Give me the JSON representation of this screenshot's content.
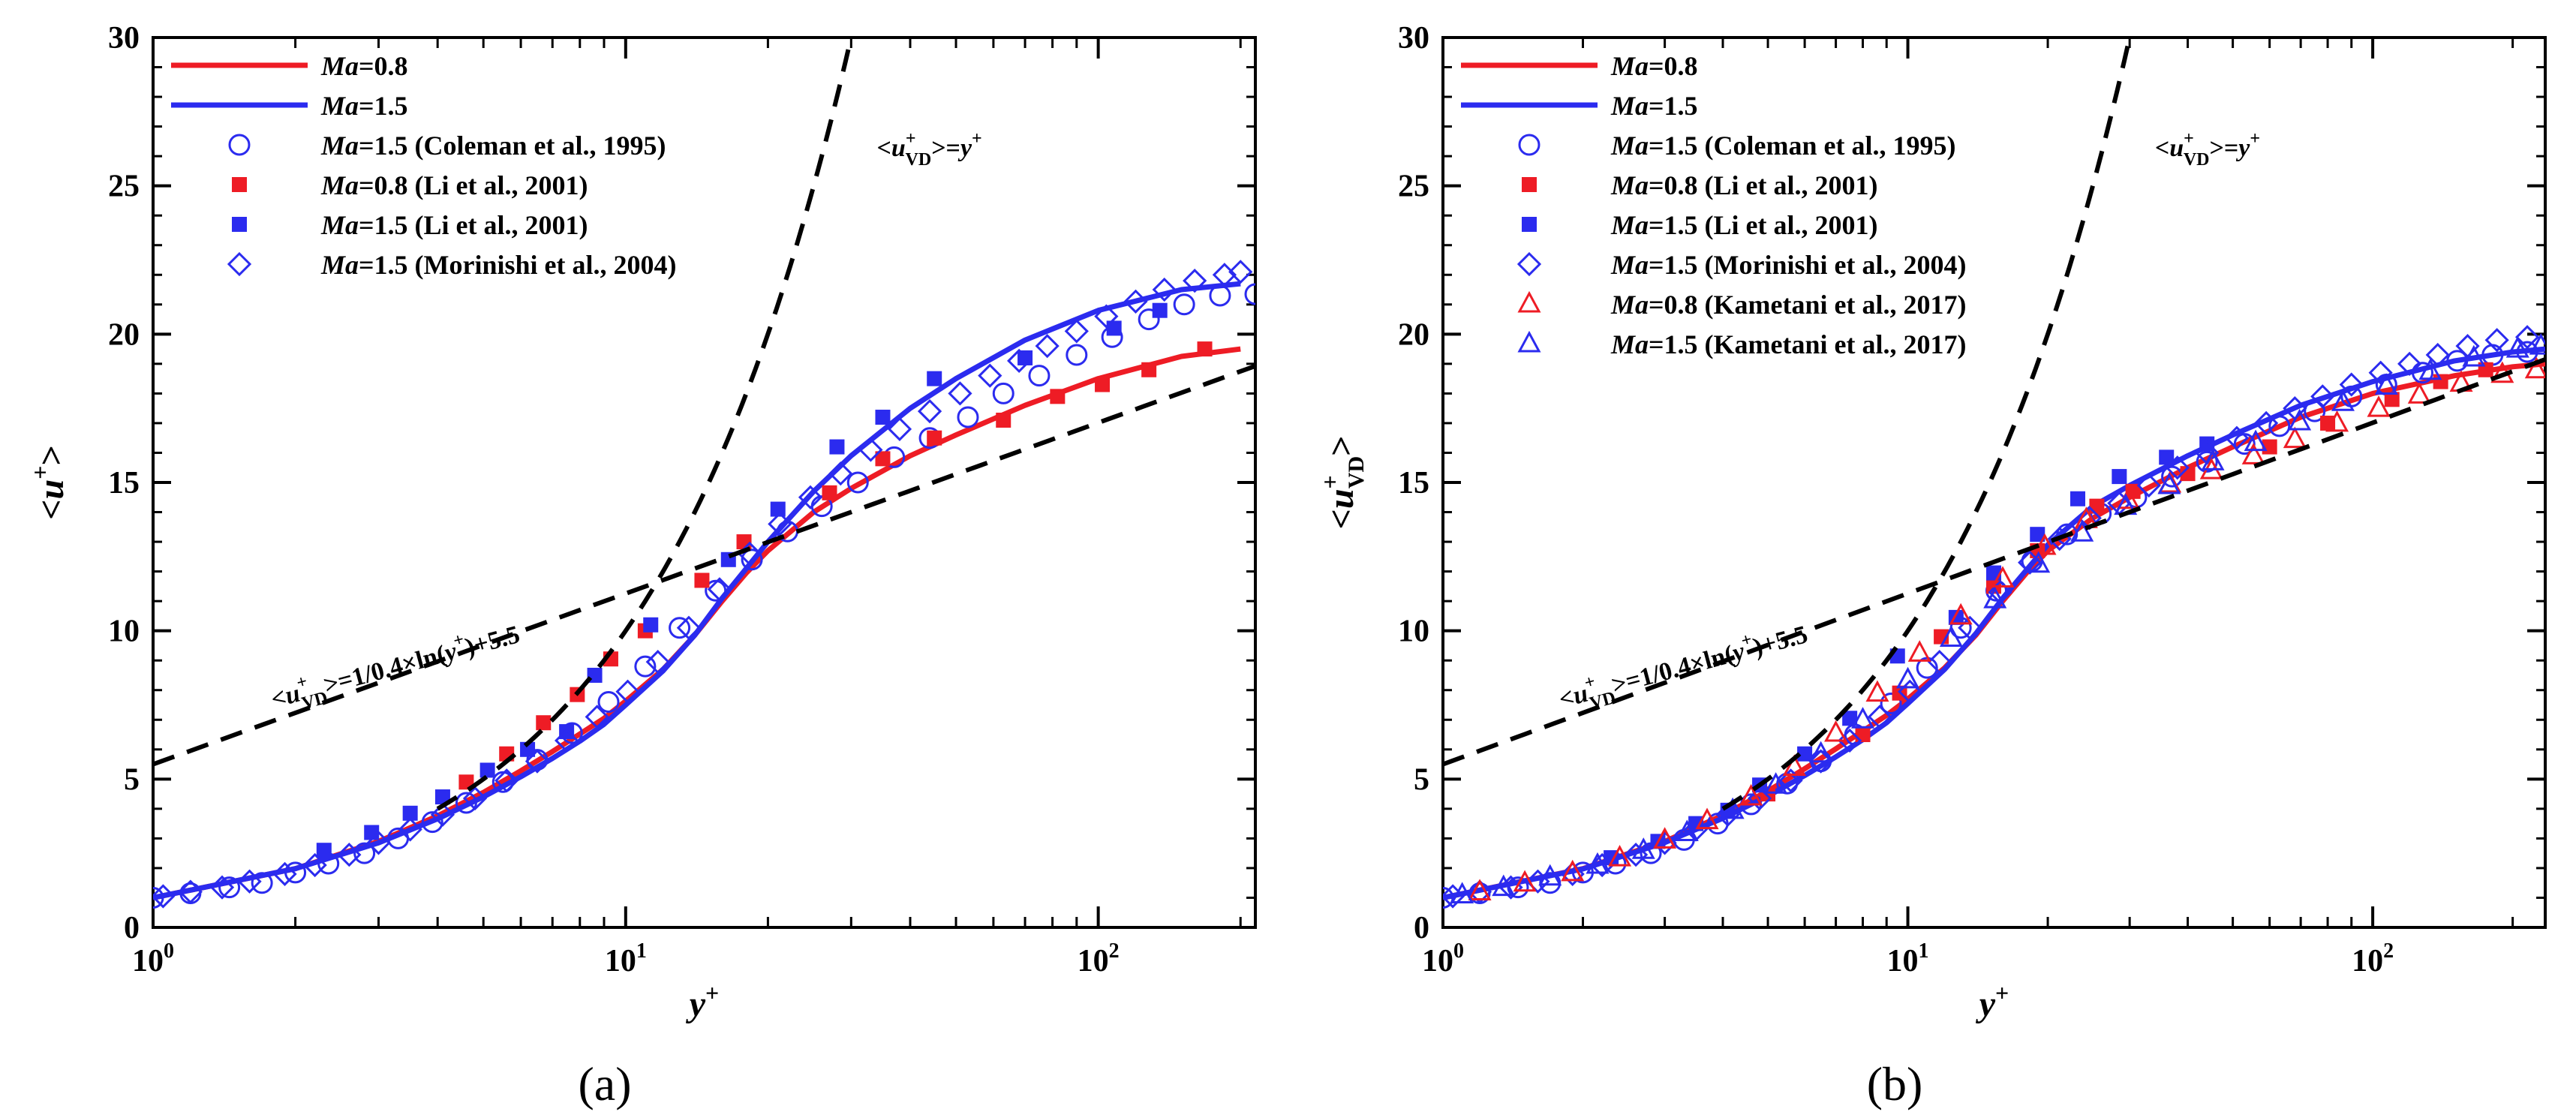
{
  "figure": {
    "panel_a_caption": "(a)",
    "panel_b_caption": "(b)",
    "colors": {
      "red": "#ee1c25",
      "blue": "#2b2bef",
      "black": "#000000",
      "background": "#ffffff"
    }
  },
  "chart_data": [
    {
      "panel": "(a)",
      "type": "line",
      "xscale": "log",
      "xlim": [
        1,
        215
      ],
      "ylim": [
        0,
        30
      ],
      "xlabel": "y+",
      "ylabel": "<u+>",
      "grid": false,
      "x_tick_labels": [
        {
          "value": 1,
          "label": "10",
          "exp": "0"
        },
        {
          "value": 10,
          "label": "10",
          "exp": "1"
        },
        {
          "value": 100,
          "label": "10",
          "exp": "2"
        }
      ],
      "y_ticks": [
        0,
        5,
        10,
        15,
        20,
        25,
        30
      ],
      "legend_position": "top-left",
      "annotations": [
        {
          "id": "log-law",
          "text": "<u+VD>=1/0.4×ln(y+)+5.5",
          "x": 1.8,
          "y": 7.4,
          "rotation_deg": -15
        },
        {
          "id": "linear-law",
          "text": "<u+VD>=y+",
          "x": 34,
          "y": 26.0,
          "rotation_deg": 0
        }
      ],
      "series": [
        {
          "id": "a-ma08-line",
          "name": "Ma=0.8",
          "legend": [
            "Ma",
            "=0.8"
          ],
          "style": "line",
          "color": "#ee1c25",
          "x": [
            1,
            2,
            3,
            4,
            5,
            6,
            7,
            8,
            9,
            10,
            12,
            14,
            16,
            18,
            20,
            25,
            30,
            40,
            50,
            70,
            100,
            150,
            200
          ],
          "y": [
            1.0,
            1.98,
            2.9,
            3.76,
            4.55,
            5.28,
            5.93,
            6.52,
            7.05,
            7.63,
            8.7,
            9.85,
            11.0,
            11.95,
            12.7,
            14.0,
            14.8,
            15.9,
            16.6,
            17.6,
            18.5,
            19.25,
            19.5
          ]
        },
        {
          "id": "a-ma15-line",
          "name": "Ma=1.5",
          "legend": [
            "Ma",
            "=1.5"
          ],
          "style": "line",
          "color": "#2b2bef",
          "x": [
            1,
            2,
            3,
            4,
            5,
            6,
            7,
            8,
            9,
            10,
            12,
            14,
            16,
            18,
            20,
            25,
            30,
            40,
            50,
            70,
            100,
            150,
            200
          ],
          "y": [
            1.0,
            1.98,
            2.85,
            3.66,
            4.4,
            5.08,
            5.7,
            6.28,
            6.85,
            7.5,
            8.65,
            9.85,
            11.1,
            12.1,
            13.0,
            14.7,
            15.9,
            17.5,
            18.5,
            19.8,
            20.8,
            21.5,
            21.7
          ]
        },
        {
          "id": "a-coleman-1995",
          "name": "Ma=1.5 (Coleman et al., 1995)",
          "legend": [
            "Ma",
            "=1.5 (Coleman et al., 1995)"
          ],
          "style": "marker",
          "marker": "circle-open",
          "color": "#2b2bef",
          "x": [
            1,
            1.2,
            1.45,
            1.7,
            2.0,
            2.35,
            2.8,
            3.3,
            3.9,
            4.6,
            5.5,
            6.5,
            7.7,
            9.2,
            11,
            13,
            15.5,
            18.5,
            22,
            26,
            31,
            37,
            44,
            53,
            63,
            75,
            90,
            107,
            128,
            152,
            181,
            215
          ],
          "y": [
            1.0,
            1.15,
            1.35,
            1.5,
            1.85,
            2.15,
            2.5,
            3.0,
            3.55,
            4.2,
            4.9,
            5.65,
            6.55,
            7.6,
            8.8,
            10.1,
            11.35,
            12.4,
            13.35,
            14.2,
            15.0,
            15.85,
            16.5,
            17.2,
            18.0,
            18.6,
            19.3,
            19.9,
            20.5,
            21.0,
            21.3,
            21.35
          ]
        },
        {
          "id": "a-li-2001-ma08",
          "name": "Ma=0.8 (Li et al., 2001)",
          "legend": [
            "Ma",
            "=0.8 (Li et al., 2001)"
          ],
          "style": "marker",
          "marker": "square-filled",
          "color": "#ee1c25",
          "x": [
            4.6,
            5.6,
            6.7,
            7.9,
            9.3,
            11.0,
            14.5,
            17.8,
            27,
            35,
            45,
            63,
            82,
            102,
            128,
            168
          ],
          "y": [
            4.9,
            5.85,
            6.9,
            7.85,
            9.05,
            10.0,
            11.7,
            13.0,
            14.65,
            15.8,
            16.5,
            17.1,
            17.9,
            18.3,
            18.8,
            19.5
          ]
        },
        {
          "id": "a-li-2001-ma15",
          "name": "Ma=1.5 (Li et al., 2001)",
          "legend": [
            "Ma",
            "=1.5 (Li et al., 2001)"
          ],
          "style": "marker",
          "marker": "square-filled",
          "color": "#2b2bef",
          "x": [
            2.3,
            2.9,
            3.5,
            4.1,
            5.1,
            6.2,
            7.5,
            8.6,
            11.3,
            16.5,
            21,
            28,
            35,
            45,
            70,
            108,
            135
          ],
          "y": [
            2.6,
            3.2,
            3.85,
            4.4,
            5.3,
            6.0,
            6.6,
            8.5,
            10.2,
            12.4,
            14.1,
            16.2,
            17.2,
            18.5,
            19.2,
            20.2,
            20.8
          ]
        },
        {
          "id": "a-morinishi-2004",
          "name": "Ma=1.5 (Morinishi et al., 2004)",
          "legend": [
            "Ma",
            "=1.5 (Morinishi et al., 2004)"
          ],
          "style": "marker",
          "marker": "diamond-open",
          "color": "#2b2bef",
          "x": [
            1.05,
            1.2,
            1.4,
            1.6,
            1.9,
            2.2,
            2.6,
            3.0,
            3.5,
            4.1,
            4.8,
            5.6,
            6.5,
            7.5,
            8.7,
            10.1,
            11.7,
            13.6,
            15.8,
            18.3,
            21.2,
            24.6,
            28.5,
            33,
            38,
            44,
            51,
            59,
            68,
            78,
            90,
            104,
            120,
            138,
            160,
            185,
            200
          ],
          "y": [
            1.05,
            1.2,
            1.35,
            1.55,
            1.8,
            2.1,
            2.45,
            2.85,
            3.3,
            3.8,
            4.35,
            4.95,
            5.6,
            6.3,
            7.1,
            7.95,
            8.95,
            10.1,
            11.4,
            12.6,
            13.6,
            14.5,
            15.3,
            16.1,
            16.8,
            17.4,
            18.0,
            18.6,
            19.1,
            19.6,
            20.1,
            20.6,
            21.1,
            21.5,
            21.8,
            22.0,
            22.1
          ]
        },
        {
          "id": "a-log-law",
          "name": "log law",
          "style": "dashed",
          "color": "#000000",
          "function": "log-law",
          "coefficients": {
            "kappa": 0.4,
            "B": 5.5
          }
        },
        {
          "id": "a-linear-law",
          "name": "linear law",
          "style": "dashed",
          "color": "#000000",
          "function": "linear",
          "x_range": [
            4,
            30.2
          ]
        }
      ]
    },
    {
      "panel": "(b)",
      "type": "line",
      "xscale": "log",
      "xlim": [
        1,
        235
      ],
      "ylim": [
        0,
        30
      ],
      "xlabel": "y+",
      "ylabel": "<u+VD>",
      "grid": false,
      "x_tick_labels": [
        {
          "value": 1,
          "label": "10",
          "exp": "0"
        },
        {
          "value": 10,
          "label": "10",
          "exp": "1"
        },
        {
          "value": 100,
          "label": "10",
          "exp": "2"
        }
      ],
      "y_ticks": [
        0,
        5,
        10,
        15,
        20,
        25,
        30
      ],
      "legend_position": "top-left",
      "annotations": [
        {
          "id": "log-law",
          "text": "<u+VD>=1/0.4×ln(y+)+5.5",
          "x": 1.8,
          "y": 7.4,
          "rotation_deg": -15
        },
        {
          "id": "linear-law",
          "text": "<u+VD>=y+",
          "x": 34,
          "y": 26.0,
          "rotation_deg": 0
        }
      ],
      "series": [
        {
          "id": "b-ma08-line",
          "name": "Ma=0.8",
          "legend": [
            "Ma",
            "=0.8"
          ],
          "style": "line",
          "color": "#ee1c25",
          "x": [
            1,
            2,
            3,
            4,
            5,
            6,
            7,
            8,
            9,
            10,
            12,
            14,
            16,
            18,
            20,
            25,
            30,
            40,
            50,
            70,
            100,
            150,
            200,
            235
          ],
          "y": [
            1.0,
            1.98,
            2.9,
            3.78,
            4.6,
            5.35,
            6.02,
            6.62,
            7.15,
            7.7,
            8.75,
            9.85,
            11.0,
            11.95,
            12.7,
            13.8,
            14.5,
            15.5,
            16.2,
            17.2,
            18.0,
            18.6,
            18.9,
            19.0
          ]
        },
        {
          "id": "b-ma15-line",
          "name": "Ma=1.5",
          "legend": [
            "Ma",
            "=1.5"
          ],
          "style": "line",
          "color": "#2b2bef",
          "x": [
            1,
            2,
            3,
            4,
            5,
            6,
            7,
            8,
            9,
            10,
            12,
            14,
            16,
            18,
            20,
            25,
            30,
            40,
            50,
            70,
            100,
            150,
            200,
            235
          ],
          "y": [
            1.0,
            1.97,
            2.86,
            3.68,
            4.43,
            5.12,
            5.75,
            6.33,
            6.9,
            7.55,
            8.7,
            9.9,
            11.1,
            12.05,
            12.9,
            14.2,
            14.9,
            15.9,
            16.6,
            17.6,
            18.4,
            19.1,
            19.4,
            19.5
          ]
        },
        {
          "id": "b-coleman-1995",
          "name": "Ma=1.5 (Coleman et al., 1995)",
          "legend": [
            "Ma",
            "=1.5 (Coleman et al., 1995)"
          ],
          "style": "marker",
          "marker": "circle-open",
          "color": "#2b2bef",
          "x": [
            1,
            1.2,
            1.45,
            1.7,
            2.0,
            2.35,
            2.8,
            3.3,
            3.9,
            4.6,
            5.5,
            6.5,
            7.7,
            9.2,
            11,
            13,
            15.5,
            18.5,
            22,
            26,
            31,
            37,
            44,
            53,
            63,
            75,
            90,
            107,
            128,
            152,
            181,
            215
          ],
          "y": [
            1.0,
            1.15,
            1.35,
            1.5,
            1.85,
            2.15,
            2.5,
            2.95,
            3.5,
            4.15,
            4.85,
            5.6,
            6.5,
            7.55,
            8.75,
            10.1,
            11.35,
            12.35,
            13.25,
            13.95,
            14.5,
            15.2,
            15.7,
            16.3,
            16.9,
            17.4,
            17.9,
            18.3,
            18.7,
            19.1,
            19.3,
            19.4
          ]
        },
        {
          "id": "b-li-2001-ma08",
          "name": "Ma=0.8 (Li et al., 2001)",
          "legend": [
            "Ma",
            "=0.8 (Li et al., 2001)"
          ],
          "style": "marker",
          "marker": "square-filled",
          "color": "#ee1c25",
          "x": [
            5.0,
            8.0,
            9.6,
            11.8,
            15.3,
            19.0,
            25.5,
            30.5,
            40,
            60,
            80,
            110,
            140,
            175
          ],
          "y": [
            4.5,
            6.5,
            7.9,
            9.8,
            11.5,
            12.7,
            14.2,
            14.7,
            15.3,
            16.2,
            17.0,
            17.8,
            18.4,
            18.8
          ]
        },
        {
          "id": "b-li-2001-ma15",
          "name": "Ma=1.5 (Li et al., 2001)",
          "legend": [
            "Ma",
            "=1.5 (Li et al., 2001)"
          ],
          "style": "marker",
          "marker": "square-filled",
          "color": "#2b2bef",
          "x": [
            2.3,
            2.9,
            3.5,
            4.1,
            4.8,
            6.0,
            7.5,
            9.5,
            12.7,
            15.3,
            19.0,
            23.2,
            28.5,
            36,
            44
          ],
          "y": [
            2.35,
            2.9,
            3.5,
            3.95,
            4.8,
            5.85,
            7.05,
            9.15,
            10.45,
            11.95,
            13.25,
            14.45,
            15.2,
            15.85,
            16.3
          ]
        },
        {
          "id": "b-morinishi-2004",
          "name": "Ma=1.5 (Morinishi et al., 2004)",
          "legend": [
            "Ma",
            "=1.5 (Morinishi et al., 2004)"
          ],
          "style": "marker",
          "marker": "diamond-open",
          "color": "#2b2bef",
          "x": [
            1.05,
            1.2,
            1.4,
            1.6,
            1.9,
            2.2,
            2.6,
            3.0,
            3.5,
            4.1,
            4.8,
            5.6,
            6.5,
            7.5,
            8.7,
            10.1,
            11.7,
            13.6,
            15.8,
            18.3,
            21.2,
            24.6,
            28.5,
            33,
            38,
            44,
            51,
            59,
            68,
            78,
            90,
            104,
            120,
            138,
            160,
            185,
            215
          ],
          "y": [
            1.05,
            1.2,
            1.35,
            1.55,
            1.8,
            2.1,
            2.45,
            2.85,
            3.3,
            3.8,
            4.35,
            4.95,
            5.6,
            6.3,
            7.1,
            7.95,
            8.95,
            10.1,
            11.3,
            12.3,
            13.1,
            13.8,
            14.3,
            14.9,
            15.5,
            16.0,
            16.5,
            17.0,
            17.5,
            17.9,
            18.3,
            18.7,
            19.0,
            19.3,
            19.6,
            19.8,
            19.9
          ]
        },
        {
          "id": "b-kametani-2017-ma08",
          "name": "Ma=0.8 (Kametani et al., 2017)",
          "legend": [
            "Ma",
            "=0.8 (Kametani et al., 2017)"
          ],
          "style": "marker",
          "marker": "triangle-open",
          "color": "#ee1c25",
          "x": [
            1.2,
            1.5,
            1.9,
            2.4,
            3.0,
            3.7,
            4.6,
            5.7,
            7.0,
            8.6,
            10.6,
            13.0,
            16.0,
            19.7,
            24.2,
            29.8,
            36.6,
            45,
            55.4,
            68,
            83.8,
            103,
            126,
            155,
            190,
            225
          ],
          "y": [
            1.2,
            1.5,
            1.85,
            2.35,
            2.95,
            3.6,
            4.4,
            5.4,
            6.55,
            7.9,
            9.25,
            10.5,
            11.75,
            12.85,
            13.75,
            14.4,
            14.95,
            15.4,
            15.9,
            16.45,
            17.0,
            17.5,
            17.95,
            18.35,
            18.65,
            18.8
          ]
        },
        {
          "id": "b-kametani-2017-ma15",
          "name": "Ma=1.5 (Kametani et al., 2017)",
          "legend": [
            "Ma",
            "=1.5 (Kametani et al., 2017)"
          ],
          "style": "marker",
          "marker": "triangle-open",
          "color": "#2b2bef",
          "x": [
            1.1,
            1.35,
            1.7,
            2.15,
            2.7,
            3.35,
            4.2,
            5.2,
            6.5,
            8.0,
            10.0,
            12.4,
            15.4,
            19.1,
            23.7,
            29.4,
            36.5,
            45.3,
            56,
            69.6,
            86.3,
            107,
            133,
            165,
            205,
            230
          ],
          "y": [
            1.1,
            1.35,
            1.7,
            2.1,
            2.6,
            3.2,
            3.95,
            4.8,
            5.85,
            7.0,
            8.35,
            9.75,
            11.05,
            12.25,
            13.3,
            14.2,
            14.9,
            15.7,
            16.35,
            17.05,
            17.7,
            18.25,
            18.75,
            19.2,
            19.5,
            19.6
          ]
        },
        {
          "id": "b-log-law",
          "name": "log law",
          "style": "dashed",
          "color": "#000000",
          "function": "log-law",
          "coefficients": {
            "kappa": 0.4,
            "B": 5.5
          }
        },
        {
          "id": "b-linear-law",
          "name": "linear law",
          "style": "dashed",
          "color": "#000000",
          "function": "linear",
          "x_range": [
            4,
            30.2
          ]
        }
      ]
    }
  ]
}
